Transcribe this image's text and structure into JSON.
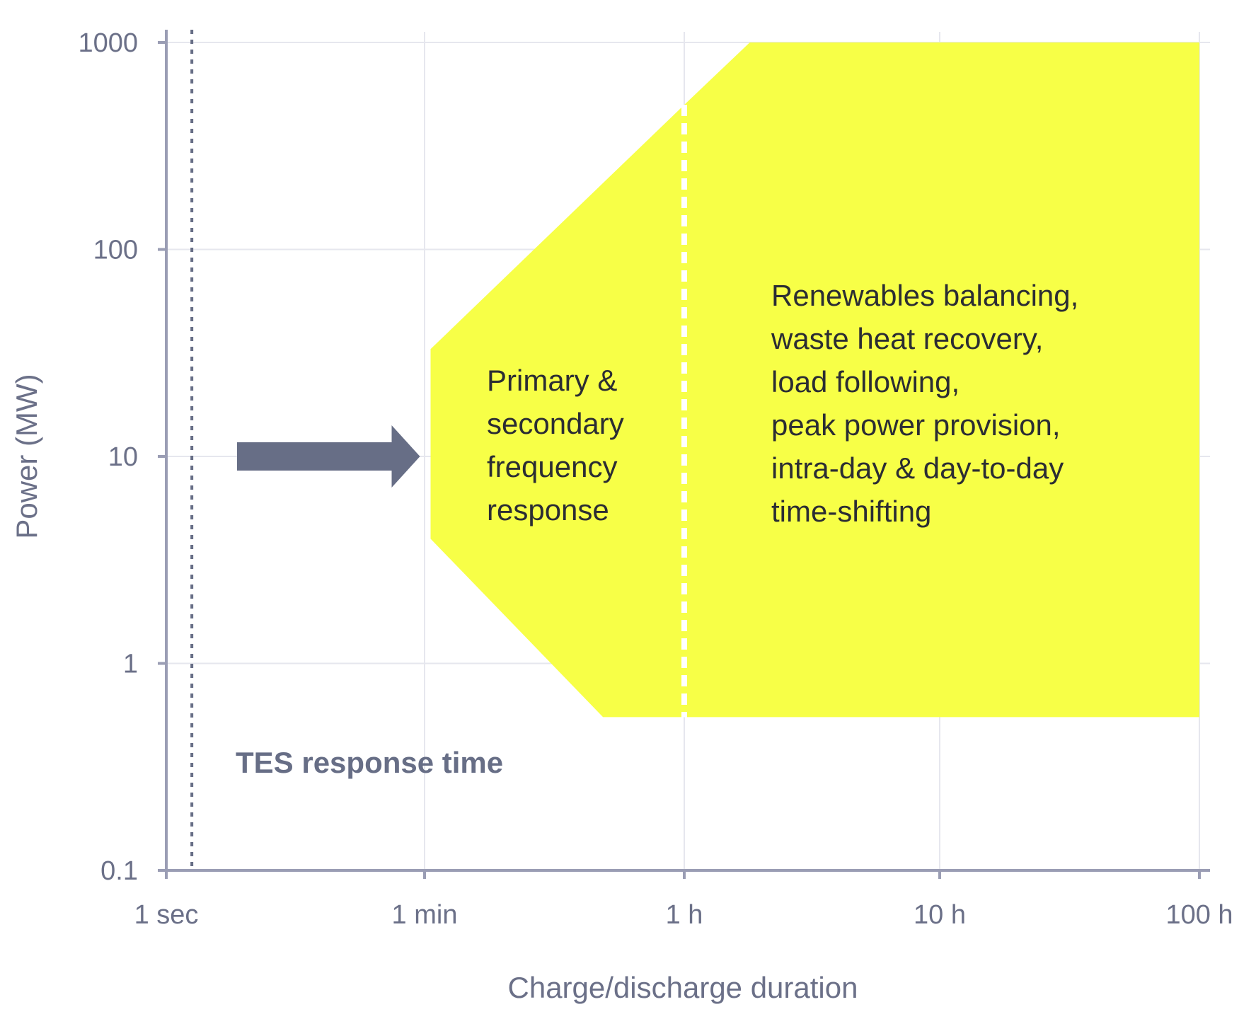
{
  "chart_data": {
    "type": "area",
    "title": "",
    "xlabel": "Charge/discharge duration",
    "ylabel": "Power (MW)",
    "x_scale": "log",
    "y_scale": "log",
    "x_unit": "seconds",
    "y_unit": "MW",
    "xlim": [
      1,
      360000
    ],
    "ylim": [
      0.1,
      1000
    ],
    "grid": true,
    "x_ticks": [
      {
        "value": 1,
        "label": "1 sec"
      },
      {
        "value": 60,
        "label": "1 min"
      },
      {
        "value": 3600,
        "label": "1 h"
      },
      {
        "value": 36000,
        "label": "10 h"
      },
      {
        "value": 360000,
        "label": "100 h"
      }
    ],
    "y_ticks": [
      {
        "value": 0.1,
        "label": "0.1"
      },
      {
        "value": 1,
        "label": "1"
      },
      {
        "value": 10,
        "label": "10"
      },
      {
        "value": 100,
        "label": "100"
      },
      {
        "value": 1000,
        "label": "1000"
      }
    ],
    "region": {
      "color": "#f7ff47",
      "polygon": [
        [
          66,
          33
        ],
        [
          3600,
          500
        ],
        [
          6500,
          1000
        ],
        [
          360000,
          1000
        ],
        [
          360000,
          0.55
        ],
        [
          1000,
          0.55
        ],
        [
          66,
          4
        ]
      ]
    },
    "divider": {
      "x": 3600,
      "y_from": 0.55,
      "y_to": 500,
      "color": "#ffffff"
    },
    "response_time_line": {
      "x": 1.5,
      "color": "#676e86"
    },
    "arrow": {
      "x_from": 2,
      "x_to": 59,
      "y": 10,
      "color": "#676e86"
    },
    "annotations": {
      "response_time": "TES response time",
      "frequency_response": [
        "Primary &",
        "secondary",
        "frequency",
        "response"
      ],
      "long_duration": [
        "Renewables balancing,",
        "waste heat recovery,",
        "load following,",
        "peak power provision,",
        "intra-day & day-to-day",
        "time-shifting"
      ]
    }
  }
}
